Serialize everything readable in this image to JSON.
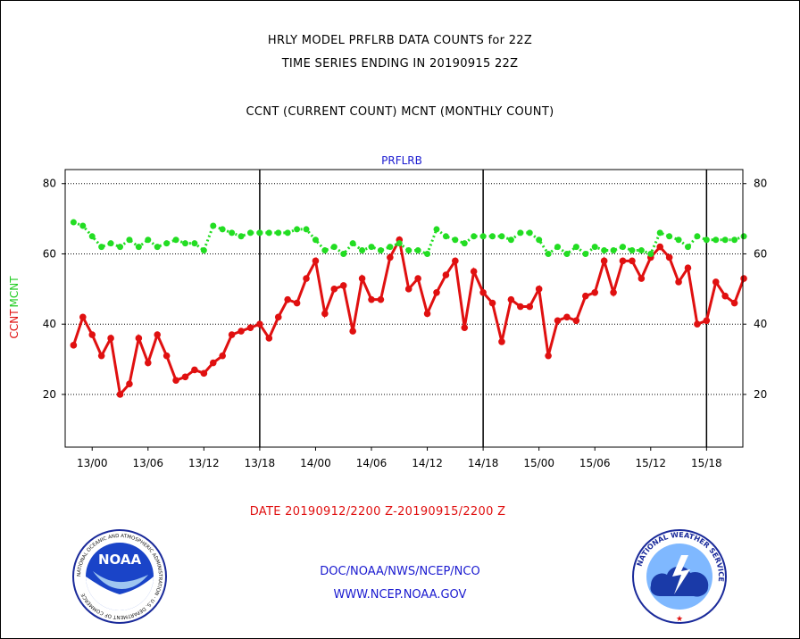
{
  "header": {
    "title_line1": "HRLY MODEL PRFLRB DATA COUNTS for 22Z",
    "title_line2": "TIME SERIES ENDING IN 20190915 22Z",
    "subtitle": "CCNT (CURRENT COUNT) MCNT (MONTHLY COUNT)"
  },
  "footer": {
    "date_range": "DATE 20190912/2200 Z-20190915/2200 Z",
    "org": "DOC/NOAA/NWS/NCEP/NCO",
    "url": "WWW.NCEP.NOAA.GOV"
  },
  "logos": {
    "left": {
      "icon": "noaa-logo-icon",
      "text": "NOAA",
      "ring_text": "NATIONAL OCEANIC AND ATMOSPHERIC ADMINISTRATION · U.S. DEPARTMENT OF COMMERCE"
    },
    "right": {
      "icon": "nws-logo-icon",
      "ring_text": "NATIONAL WEATHER SERVICE"
    }
  },
  "chart_data": {
    "type": "line",
    "title": "PRFLRB",
    "ylabel_left": "CCNT",
    "ylabel_right": "MCNT",
    "ylim": [
      5,
      84
    ],
    "yticks": [
      20,
      40,
      60,
      80
    ],
    "grid": true,
    "xlim": [
      -0.9,
      71.9
    ],
    "x_ticks": [
      {
        "x": 2,
        "label": "13/00"
      },
      {
        "x": 8,
        "label": "13/06"
      },
      {
        "x": 14,
        "label": "13/12"
      },
      {
        "x": 20,
        "label": "13/18"
      },
      {
        "x": 26,
        "label": "14/00"
      },
      {
        "x": 32,
        "label": "14/06"
      },
      {
        "x": 38,
        "label": "14/12"
      },
      {
        "x": 44,
        "label": "14/18"
      },
      {
        "x": 50,
        "label": "15/00"
      },
      {
        "x": 56,
        "label": "15/06"
      },
      {
        "x": 62,
        "label": "15/12"
      },
      {
        "x": 68,
        "label": "15/18"
      }
    ],
    "day_boundaries": [
      20,
      44,
      68
    ],
    "series": [
      {
        "name": "CCNT",
        "color": "#e01010",
        "style": "solid",
        "values": [
          34,
          42,
          37,
          31,
          36,
          20,
          23,
          36,
          29,
          37,
          31,
          24,
          25,
          27,
          26,
          29,
          31,
          37,
          38,
          39,
          40,
          36,
          42,
          47,
          46,
          53,
          58,
          43,
          50,
          51,
          38,
          53,
          47,
          47,
          59,
          64,
          50,
          53,
          43,
          49,
          54,
          58,
          39,
          55,
          49,
          46,
          35,
          47,
          45,
          45,
          50,
          31,
          41,
          42,
          41,
          48,
          49,
          58,
          49,
          58,
          58,
          53,
          59,
          62,
          59,
          52,
          56,
          40,
          41,
          52,
          48,
          46,
          53
        ]
      },
      {
        "name": "MCNT",
        "color": "#22dd22",
        "style": "dotted",
        "values": [
          69,
          68,
          65,
          62,
          63,
          62,
          64,
          62,
          64,
          62,
          63,
          64,
          63,
          63,
          61,
          68,
          67,
          66,
          65,
          66,
          66,
          66,
          66,
          66,
          67,
          67,
          64,
          61,
          62,
          60,
          63,
          61,
          62,
          61,
          62,
          63,
          61,
          61,
          60,
          67,
          65,
          64,
          63,
          65,
          65,
          65,
          65,
          64,
          66,
          66,
          64,
          60,
          62,
          60,
          62,
          60,
          62,
          61,
          61,
          62,
          61,
          61,
          60,
          66,
          65,
          64,
          62,
          65,
          64,
          64,
          64,
          64,
          65
        ]
      }
    ]
  }
}
